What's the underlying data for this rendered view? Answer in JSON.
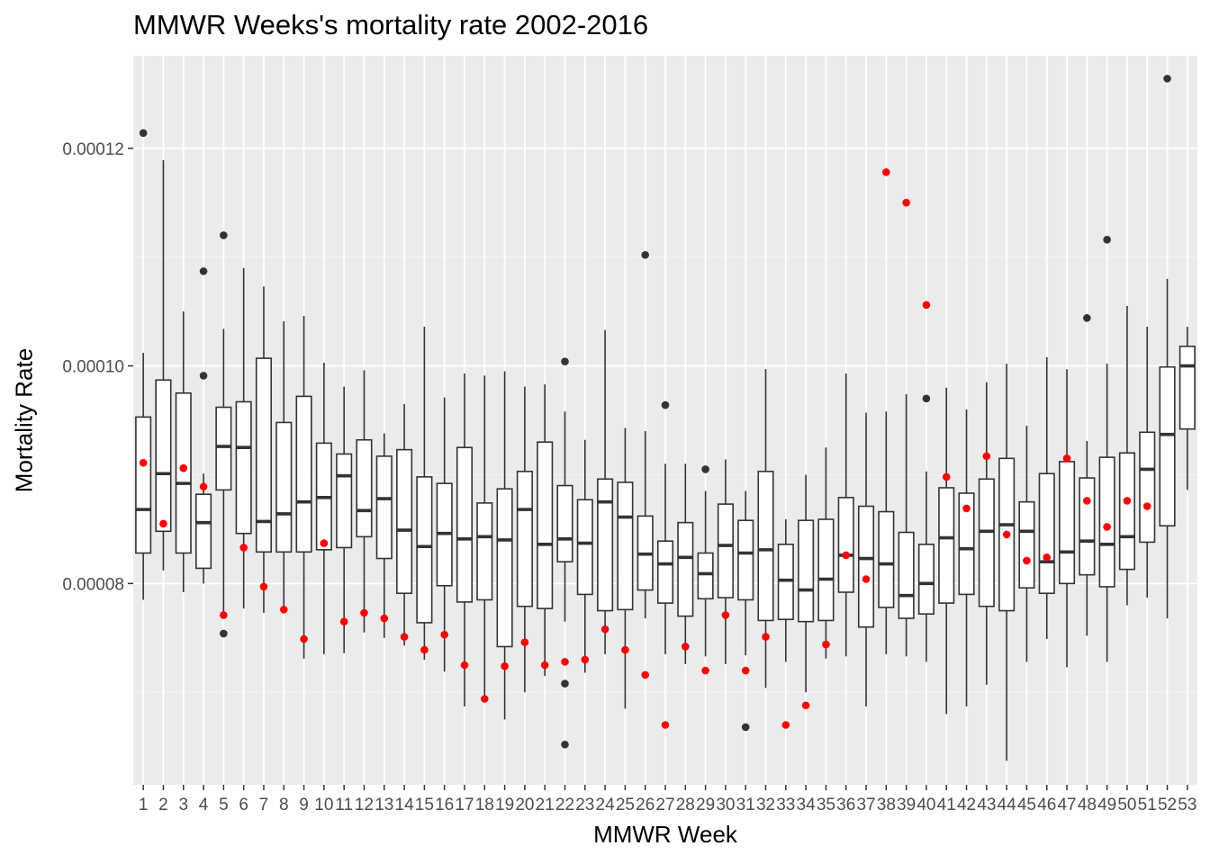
{
  "chart_data": {
    "type": "boxplot",
    "title": "MMWR Weeks's mortality rate 2002-2016",
    "xlabel": "MMWR Week",
    "ylabel": "Mortality Rate",
    "ylim": [
      6.15e-05,
      0.0001285
    ],
    "y_ticks": [
      {
        "value": 8e-05,
        "label": "0.00008"
      },
      {
        "value": 0.0001,
        "label": "0.00010"
      },
      {
        "value": 0.00012,
        "label": "0.00012"
      }
    ],
    "categories": [
      "1",
      "2",
      "3",
      "4",
      "5",
      "6",
      "7",
      "8",
      "9",
      "10",
      "11",
      "12",
      "13",
      "14",
      "15",
      "16",
      "17",
      "18",
      "19",
      "20",
      "21",
      "22",
      "23",
      "24",
      "25",
      "26",
      "27",
      "28",
      "29",
      "30",
      "31",
      "32",
      "33",
      "34",
      "35",
      "36",
      "37",
      "38",
      "39",
      "40",
      "41",
      "42",
      "43",
      "44",
      "45",
      "46",
      "47",
      "48",
      "49",
      "50",
      "51",
      "52",
      "53"
    ],
    "box_color": "#333333",
    "box_fill": "#ffffff",
    "outlier_color": "#333333",
    "highlight_color": "#ff0000",
    "panel_background": "#ebebeb",
    "grid": true,
    "legend": "none",
    "boxes": [
      {
        "week": "1",
        "min": 7.85e-05,
        "q1": 8.28e-05,
        "median": 8.68e-05,
        "q3": 9.53e-05,
        "max": 0.0001012,
        "outliers": [
          0.0001214
        ],
        "highlight": 9.11e-05
      },
      {
        "week": "2",
        "min": 8.12e-05,
        "q1": 8.48e-05,
        "median": 9.01e-05,
        "q3": 9.87e-05,
        "max": 0.0001189,
        "outliers": [],
        "highlight": 8.55e-05
      },
      {
        "week": "3",
        "min": 7.92e-05,
        "q1": 8.28e-05,
        "median": 8.92e-05,
        "q3": 9.75e-05,
        "max": 0.000105,
        "outliers": [],
        "highlight": 9.06e-05
      },
      {
        "week": "4",
        "min": 8e-05,
        "q1": 8.14e-05,
        "median": 8.56e-05,
        "q3": 8.82e-05,
        "max": 9.01e-05,
        "outliers": [
          0.0001087,
          9.91e-05
        ],
        "highlight": 8.89e-05
      },
      {
        "week": "5",
        "min": 7.7e-05,
        "q1": 8.86e-05,
        "median": 9.26e-05,
        "q3": 9.62e-05,
        "max": 0.0001034,
        "outliers": [
          0.000112,
          7.54e-05
        ],
        "highlight": 7.71e-05
      },
      {
        "week": "6",
        "min": 7.77e-05,
        "q1": 8.46e-05,
        "median": 9.25e-05,
        "q3": 9.67e-05,
        "max": 0.000109,
        "outliers": [],
        "highlight": 8.33e-05
      },
      {
        "week": "7",
        "min": 7.73e-05,
        "q1": 8.29e-05,
        "median": 8.57e-05,
        "q3": 0.0001007,
        "max": 0.0001073,
        "outliers": [],
        "highlight": 7.97e-05
      },
      {
        "week": "8",
        "min": 7.75e-05,
        "q1": 8.29e-05,
        "median": 8.64e-05,
        "q3": 9.48e-05,
        "max": 0.0001041,
        "outliers": [],
        "highlight": 7.76e-05
      },
      {
        "week": "9",
        "min": 7.31e-05,
        "q1": 8.29e-05,
        "median": 8.75e-05,
        "q3": 9.72e-05,
        "max": 0.0001046,
        "outliers": [],
        "highlight": 7.49e-05
      },
      {
        "week": "10",
        "min": 7.35e-05,
        "q1": 8.31e-05,
        "median": 8.79e-05,
        "q3": 9.29e-05,
        "max": 0.0001003,
        "outliers": [],
        "highlight": 8.37e-05
      },
      {
        "week": "11",
        "min": 7.36e-05,
        "q1": 8.33e-05,
        "median": 8.99e-05,
        "q3": 9.19e-05,
        "max": 9.81e-05,
        "outliers": [],
        "highlight": 7.65e-05
      },
      {
        "week": "12",
        "min": 7.55e-05,
        "q1": 8.43e-05,
        "median": 8.67e-05,
        "q3": 9.32e-05,
        "max": 9.96e-05,
        "outliers": [],
        "highlight": 7.73e-05
      },
      {
        "week": "13",
        "min": 7.5e-05,
        "q1": 8.23e-05,
        "median": 8.78e-05,
        "q3": 9.17e-05,
        "max": 9.38e-05,
        "outliers": [],
        "highlight": 7.68e-05
      },
      {
        "week": "14",
        "min": 7.43e-05,
        "q1": 7.91e-05,
        "median": 8.49e-05,
        "q3": 9.23e-05,
        "max": 9.65e-05,
        "outliers": [],
        "highlight": 7.51e-05
      },
      {
        "week": "15",
        "min": 7.3e-05,
        "q1": 7.64e-05,
        "median": 8.34e-05,
        "q3": 8.98e-05,
        "max": 0.0001036,
        "outliers": [],
        "highlight": 7.39e-05
      },
      {
        "week": "16",
        "min": 7.19e-05,
        "q1": 7.98e-05,
        "median": 8.46e-05,
        "q3": 8.92e-05,
        "max": 9.71e-05,
        "outliers": [],
        "highlight": 7.53e-05
      },
      {
        "week": "17",
        "min": 6.87e-05,
        "q1": 7.83e-05,
        "median": 8.41e-05,
        "q3": 9.25e-05,
        "max": 9.93e-05,
        "outliers": [],
        "highlight": 7.25e-05
      },
      {
        "week": "18",
        "min": 6.94e-05,
        "q1": 7.85e-05,
        "median": 8.43e-05,
        "q3": 8.74e-05,
        "max": 9.91e-05,
        "outliers": [],
        "highlight": 6.94e-05
      },
      {
        "week": "19",
        "min": 6.75e-05,
        "q1": 7.42e-05,
        "median": 8.4e-05,
        "q3": 8.87e-05,
        "max": 9.95e-05,
        "outliers": [],
        "highlight": 7.24e-05
      },
      {
        "week": "20",
        "min": 7e-05,
        "q1": 7.79e-05,
        "median": 8.68e-05,
        "q3": 9.03e-05,
        "max": 9.81e-05,
        "outliers": [],
        "highlight": 7.46e-05
      },
      {
        "week": "21",
        "min": 7.15e-05,
        "q1": 7.77e-05,
        "median": 8.36e-05,
        "q3": 9.3e-05,
        "max": 9.83e-05,
        "outliers": [],
        "highlight": 7.25e-05
      },
      {
        "week": "22",
        "min": 7.65e-05,
        "q1": 8.2e-05,
        "median": 8.41e-05,
        "q3": 8.9e-05,
        "max": 9.58e-05,
        "outliers": [
          0.0001004,
          7.08e-05,
          6.52e-05
        ],
        "highlight": 7.28e-05
      },
      {
        "week": "23",
        "min": 7.18e-05,
        "q1": 7.9e-05,
        "median": 8.37e-05,
        "q3": 8.77e-05,
        "max": 9.32e-05,
        "outliers": [],
        "highlight": 7.3e-05
      },
      {
        "week": "24",
        "min": 7.35e-05,
        "q1": 7.75e-05,
        "median": 8.75e-05,
        "q3": 8.96e-05,
        "max": 0.0001033,
        "outliers": [],
        "highlight": 7.58e-05
      },
      {
        "week": "25",
        "min": 6.85e-05,
        "q1": 7.76e-05,
        "median": 8.61e-05,
        "q3": 8.93e-05,
        "max": 9.43e-05,
        "outliers": [],
        "highlight": 7.39e-05
      },
      {
        "week": "26",
        "min": 7.68e-05,
        "q1": 7.94e-05,
        "median": 8.27e-05,
        "q3": 8.62e-05,
        "max": 9.4e-05,
        "outliers": [
          0.0001102
        ],
        "highlight": 7.16e-05
      },
      {
        "week": "27",
        "min": 7.35e-05,
        "q1": 7.82e-05,
        "median": 8.18e-05,
        "q3": 8.39e-05,
        "max": 9.1e-05,
        "outliers": [
          9.64e-05
        ],
        "highlight": 6.7e-05
      },
      {
        "week": "28",
        "min": 7.26e-05,
        "q1": 7.7e-05,
        "median": 8.24e-05,
        "q3": 8.56e-05,
        "max": 9.1e-05,
        "outliers": [],
        "highlight": 7.42e-05
      },
      {
        "week": "29",
        "min": 7.33e-05,
        "q1": 7.86e-05,
        "median": 8.09e-05,
        "q3": 8.28e-05,
        "max": 8.85e-05,
        "outliers": [
          9.05e-05
        ],
        "highlight": 7.2e-05
      },
      {
        "week": "30",
        "min": 7.26e-05,
        "q1": 7.87e-05,
        "median": 8.35e-05,
        "q3": 8.73e-05,
        "max": 9.14e-05,
        "outliers": [],
        "highlight": 7.71e-05
      },
      {
        "week": "31",
        "min": 7.34e-05,
        "q1": 7.85e-05,
        "median": 8.28e-05,
        "q3": 8.58e-05,
        "max": 8.85e-05,
        "outliers": [
          6.68e-05
        ],
        "highlight": 7.2e-05
      },
      {
        "week": "32",
        "min": 7.04e-05,
        "q1": 7.66e-05,
        "median": 8.31e-05,
        "q3": 9.03e-05,
        "max": 9.97e-05,
        "outliers": [],
        "highlight": 7.51e-05
      },
      {
        "week": "33",
        "min": 7.28e-05,
        "q1": 7.67e-05,
        "median": 8.03e-05,
        "q3": 8.36e-05,
        "max": 8.59e-05,
        "outliers": [],
        "highlight": 6.7e-05
      },
      {
        "week": "34",
        "min": 7e-05,
        "q1": 7.65e-05,
        "median": 7.94e-05,
        "q3": 8.58e-05,
        "max": 9e-05,
        "outliers": [],
        "highlight": 6.88e-05
      },
      {
        "week": "35",
        "min": 7.31e-05,
        "q1": 7.66e-05,
        "median": 8.04e-05,
        "q3": 8.59e-05,
        "max": 9.25e-05,
        "outliers": [],
        "highlight": 7.44e-05
      },
      {
        "week": "36",
        "min": 7.33e-05,
        "q1": 7.92e-05,
        "median": 8.26e-05,
        "q3": 8.79e-05,
        "max": 9.93e-05,
        "outliers": [],
        "highlight": 8.26e-05
      },
      {
        "week": "37",
        "min": 6.87e-05,
        "q1": 7.6e-05,
        "median": 8.23e-05,
        "q3": 8.71e-05,
        "max": 9.57e-05,
        "outliers": [],
        "highlight": 8.04e-05
      },
      {
        "week": "38",
        "min": 7.35e-05,
        "q1": 7.78e-05,
        "median": 8.18e-05,
        "q3": 8.66e-05,
        "max": 9.58e-05,
        "outliers": [],
        "highlight": 0.0001178
      },
      {
        "week": "39",
        "min": 7.33e-05,
        "q1": 7.68e-05,
        "median": 7.89e-05,
        "q3": 8.47e-05,
        "max": 9.74e-05,
        "outliers": [],
        "highlight": 0.000115
      },
      {
        "week": "40",
        "min": 7.28e-05,
        "q1": 7.72e-05,
        "median": 8e-05,
        "q3": 8.36e-05,
        "max": 9.03e-05,
        "outliers": [
          9.7e-05
        ],
        "highlight": 0.0001056
      },
      {
        "week": "41",
        "min": 6.8e-05,
        "q1": 7.82e-05,
        "median": 8.42e-05,
        "q3": 8.88e-05,
        "max": 9.8e-05,
        "outliers": [],
        "highlight": 8.98e-05
      },
      {
        "week": "42",
        "min": 6.87e-05,
        "q1": 7.9e-05,
        "median": 8.32e-05,
        "q3": 8.83e-05,
        "max": 9.6e-05,
        "outliers": [],
        "highlight": 8.69e-05
      },
      {
        "week": "43",
        "min": 7.07e-05,
        "q1": 7.79e-05,
        "median": 8.48e-05,
        "q3": 8.96e-05,
        "max": 9.85e-05,
        "outliers": [],
        "highlight": 9.17e-05
      },
      {
        "week": "44",
        "min": 6.37e-05,
        "q1": 7.75e-05,
        "median": 8.54e-05,
        "q3": 9.15e-05,
        "max": 0.0001002,
        "outliers": [],
        "highlight": 8.45e-05
      },
      {
        "week": "45",
        "min": 7.28e-05,
        "q1": 7.96e-05,
        "median": 8.48e-05,
        "q3": 8.75e-05,
        "max": 9.45e-05,
        "outliers": [],
        "highlight": 8.21e-05
      },
      {
        "week": "46",
        "min": 7.49e-05,
        "q1": 7.91e-05,
        "median": 8.2e-05,
        "q3": 9.01e-05,
        "max": 0.0001008,
        "outliers": [],
        "highlight": 8.24e-05
      },
      {
        "week": "47",
        "min": 7.23e-05,
        "q1": 8e-05,
        "median": 8.29e-05,
        "q3": 9.12e-05,
        "max": 9.97e-05,
        "outliers": [],
        "highlight": 9.15e-05
      },
      {
        "week": "48",
        "min": 7.52e-05,
        "q1": 8.08e-05,
        "median": 8.39e-05,
        "q3": 8.97e-05,
        "max": 9.31e-05,
        "outliers": [
          0.0001044
        ],
        "highlight": 8.76e-05
      },
      {
        "week": "49",
        "min": 7.28e-05,
        "q1": 7.97e-05,
        "median": 8.36e-05,
        "q3": 9.16e-05,
        "max": 0.0001002,
        "outliers": [
          0.0001116
        ],
        "highlight": 8.52e-05
      },
      {
        "week": "50",
        "min": 7.8e-05,
        "q1": 8.13e-05,
        "median": 8.43e-05,
        "q3": 9.2e-05,
        "max": 0.0001055,
        "outliers": [],
        "highlight": 8.76e-05
      },
      {
        "week": "51",
        "min": 7.87e-05,
        "q1": 8.38e-05,
        "median": 9.05e-05,
        "q3": 9.39e-05,
        "max": 0.0001036,
        "outliers": [],
        "highlight": 8.71e-05
      },
      {
        "week": "52",
        "min": 7.68e-05,
        "q1": 8.53e-05,
        "median": 9.37e-05,
        "q3": 9.99e-05,
        "max": 0.000108,
        "outliers": [
          0.0001264
        ],
        "highlight": null
      },
      {
        "week": "53",
        "min": 8.86e-05,
        "q1": 9.42e-05,
        "median": 0.0001,
        "q3": 0.0001018,
        "max": 0.0001036,
        "outliers": [],
        "highlight": null
      }
    ]
  }
}
